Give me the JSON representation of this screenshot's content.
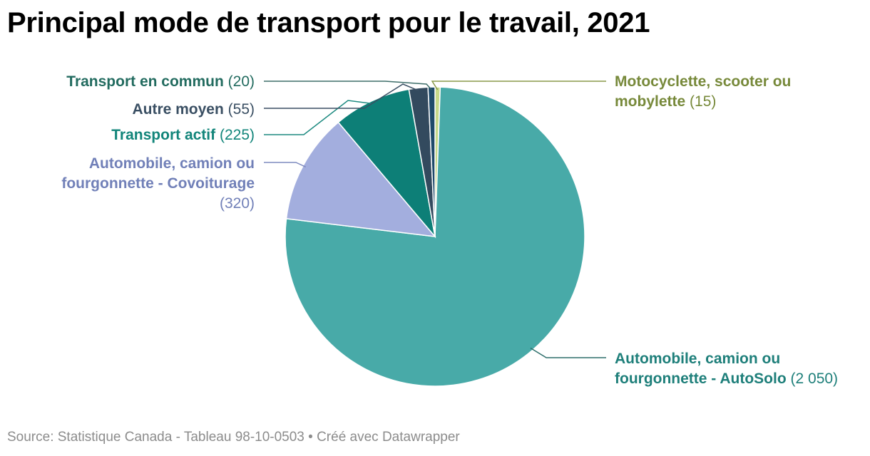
{
  "chart_data": {
    "type": "pie",
    "title": "Principal mode de transport pour le travail, 2021",
    "slices": [
      {
        "name": "Motocyclette, scooter ou mobylette",
        "value": 15,
        "value_label": "(15)",
        "color": "#c6d88a",
        "label_color": "#77893a",
        "line_color": "#8a9a4a"
      },
      {
        "name": "Automobile, camion ou fourgonnette - AutoSolo",
        "value": 2050,
        "value_label": "(2 050)",
        "color": "#48aaa8",
        "label_color": "#1e7f7a",
        "line_color": "#2f6f6c"
      },
      {
        "name": "Automobile, camion ou fourgonnette - Covoiturage",
        "value": 320,
        "value_label": "(320)",
        "color": "#a3aede",
        "label_color": "#7180b8",
        "line_color": "#7f8bbf"
      },
      {
        "name": "Transport actif",
        "value": 225,
        "value_label": "(225)",
        "color": "#0d7f77",
        "label_color": "#12857a",
        "line_color": "#1d8a80"
      },
      {
        "name": "Autre moyen",
        "value": 55,
        "value_label": "(55)",
        "color": "#334a5e",
        "label_color": "#3a4f63",
        "line_color": "#3a4f63"
      },
      {
        "name": "Transport en commun",
        "value": 20,
        "value_label": "(20)",
        "color": "#1f4a6a",
        "label_color": "#226b5f",
        "line_color": "#3e6e6a"
      }
    ]
  },
  "footer": {
    "source": "Source: Statistique Canada - Tableau 98-10-0503 • Créé avec Datawrapper"
  }
}
